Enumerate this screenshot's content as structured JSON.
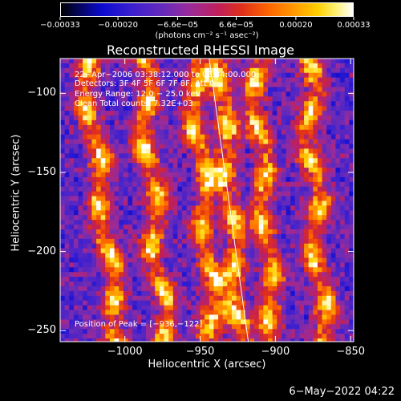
{
  "chart_data": {
    "type": "heatmap",
    "title": "Reconstructed RHESSI Image",
    "xlabel": "Heliocentric X (arcsec)",
    "ylabel": "Heliocentric Y (arcsec)",
    "xlim": [
      -1043,
      -848
    ],
    "ylim": [
      -257,
      -78
    ],
    "xticks": [
      {
        "value": -1000,
        "label": "−1000"
      },
      {
        "value": -950,
        "label": "−950"
      },
      {
        "value": -900,
        "label": "−900"
      },
      {
        "value": -850,
        "label": "−850"
      }
    ],
    "yticks": [
      {
        "value": -100,
        "label": "−100"
      },
      {
        "value": -150,
        "label": "−150"
      },
      {
        "value": -200,
        "label": "−200"
      },
      {
        "value": -250,
        "label": "−250"
      }
    ],
    "colorbar": {
      "min": -0.00033,
      "max": 0.00033,
      "colormap": "black-blue-purple-red-orange-yellow-white",
      "units": "(photons cm⁻² s⁻¹ asec⁻²)",
      "ticks": [
        {
          "value": -0.00033,
          "label": "−0.00033"
        },
        {
          "value": -0.0002,
          "label": "−0.00020"
        },
        {
          "value": -6.6e-05,
          "label": "−6.6e−05"
        },
        {
          "value": 6.6e-05,
          "label": "6.6e−05"
        },
        {
          "value": 0.0002,
          "label": "0.00020"
        },
        {
          "value": 0.00033,
          "label": "0.00033"
        }
      ]
    },
    "annotations": [
      "22−Apr−2006 03:38:12.000 to 03:44:00.000",
      "Detectors: 3F 4F 5F 6F 7F 8F, Att 0",
      "Energy Range: 12.0 − 25.0 keV",
      "Clean    Total counts: 7.32E+03"
    ],
    "peak_label": "Position of Peak = [−936,−122]",
    "limb_line": [
      [
        -944,
        -78
      ],
      [
        -918,
        -257
      ]
    ],
    "bands": [
      {
        "x_top": -1028,
        "x_bottom": -1005,
        "amp": 8
      },
      {
        "x_top": -990,
        "x_bottom": -975,
        "amp": 10
      },
      {
        "x_top": -956,
        "x_bottom": -942,
        "amp": 9
      },
      {
        "x_top": -938,
        "x_bottom": -925,
        "amp": 6
      },
      {
        "x_top": -915,
        "x_bottom": -903,
        "amp": 8
      },
      {
        "x_top": -880,
        "x_bottom": -870,
        "amp": 10
      }
    ]
  },
  "timestamp": "6−May−2022 04:22"
}
